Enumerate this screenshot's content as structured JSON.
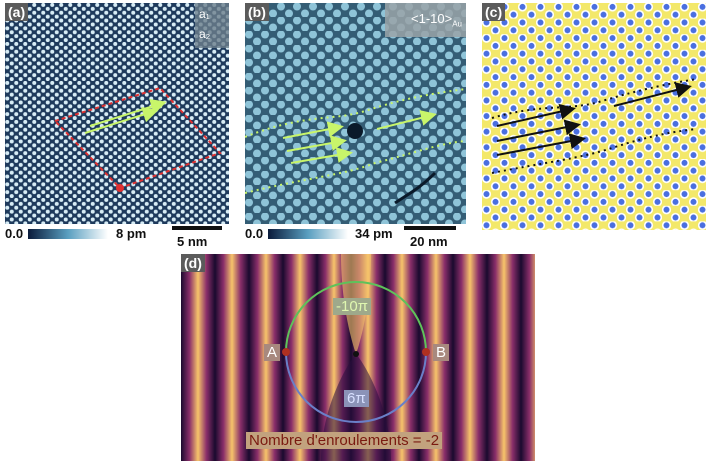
{
  "panel_a": {
    "label": "(a)",
    "inset_a1": "a₁",
    "inset_a2": "a₂",
    "colorbar_min": "0.0",
    "colorbar_max": "8 pm",
    "scalebar": "5 nm"
  },
  "panel_b": {
    "label": "(b)",
    "direction": "<1-10>",
    "direction_sub": "Au",
    "colorbar_min": "0.0",
    "colorbar_max": "34 pm",
    "scalebar": "20 nm"
  },
  "panel_c": {
    "label": "(c)"
  },
  "panel_d": {
    "label": "(d)",
    "top_phase": "-10π",
    "bottom_phase": "6π",
    "point_a": "A",
    "point_b": "B",
    "winding": "Nombre d'enroulements = -2"
  },
  "colors": {
    "accent_green": "#c8f56a",
    "accent_red": "#e03030",
    "circle_green": "#5ec25a",
    "circle_blue": "#6a7fc8"
  }
}
